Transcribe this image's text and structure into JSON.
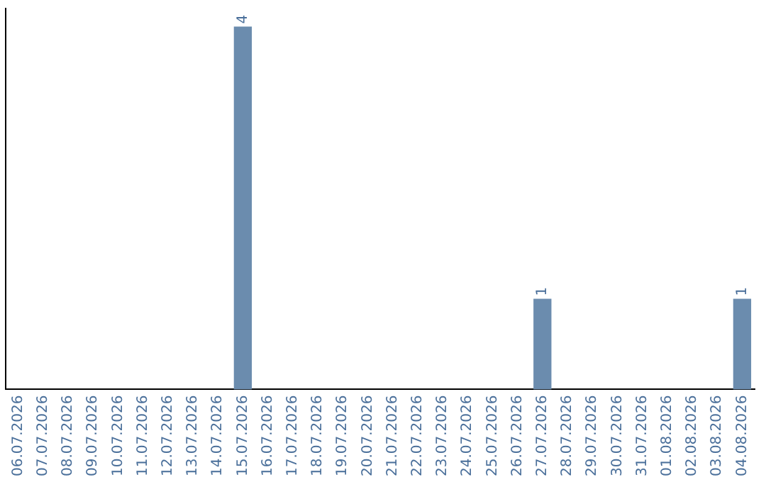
{
  "chart_data": {
    "type": "bar",
    "categories": [
      "06.07.2026",
      "07.07.2026",
      "08.07.2026",
      "09.07.2026",
      "10.07.2026",
      "11.07.2026",
      "12.07.2026",
      "13.07.2026",
      "14.07.2026",
      "15.07.2026",
      "16.07.2026",
      "17.07.2026",
      "18.07.2026",
      "19.07.2026",
      "20.07.2026",
      "21.07.2026",
      "22.07.2026",
      "23.07.2026",
      "24.07.2026",
      "25.07.2026",
      "26.07.2026",
      "27.07.2026",
      "28.07.2026",
      "29.07.2026",
      "30.07.2026",
      "31.07.2026",
      "01.08.2026",
      "02.08.2026",
      "03.08.2026",
      "04.08.2026"
    ],
    "values": [
      0,
      0,
      0,
      0,
      0,
      0,
      0,
      0,
      0,
      4,
      0,
      0,
      0,
      0,
      0,
      0,
      0,
      0,
      0,
      0,
      0,
      1,
      0,
      0,
      0,
      0,
      0,
      0,
      0,
      1
    ],
    "value_labels": [
      null,
      null,
      null,
      null,
      null,
      null,
      null,
      null,
      null,
      "4",
      null,
      null,
      null,
      null,
      null,
      null,
      null,
      null,
      null,
      null,
      null,
      "1",
      null,
      null,
      null,
      null,
      null,
      null,
      null,
      "1"
    ],
    "color": "#6b8cae",
    "ylim": [
      0,
      4.2
    ],
    "tick_labels": "x",
    "grid": false,
    "legend": false
  }
}
